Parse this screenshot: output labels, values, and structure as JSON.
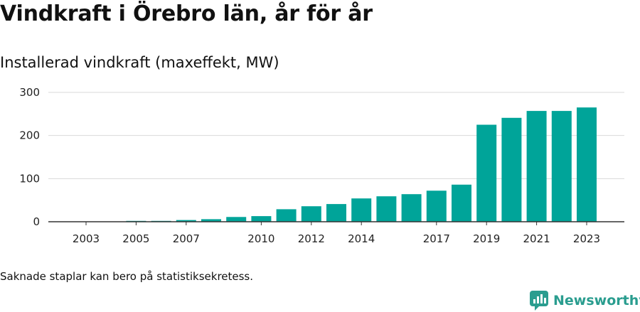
{
  "chart_data": {
    "type": "bar",
    "title": "Vindkraft i Örebro län, år för år",
    "subtitle": "Installerad vindkraft (maxeffekt, MW)",
    "categories": [
      "2003",
      "2004",
      "2005",
      "2006",
      "2007",
      "2008",
      "2009",
      "2010",
      "2011",
      "2012",
      "2013",
      "2014",
      "2015",
      "2016",
      "2017",
      "2018",
      "2019",
      "2020",
      "2021",
      "2022",
      "2023"
    ],
    "x_tick_labels": [
      "2003",
      "2005",
      "2007",
      "2010",
      "2012",
      "2014",
      "2017",
      "2019",
      "2021",
      "2023"
    ],
    "values": [
      0,
      0,
      2,
      2,
      4,
      6,
      11,
      13,
      29,
      36,
      41,
      54,
      59,
      64,
      72,
      86,
      225,
      241,
      257,
      257,
      265
    ],
    "yticks": [
      0,
      100,
      200,
      300
    ],
    "ylim": [
      0,
      300
    ],
    "xlabel": "",
    "ylabel": "",
    "grid": true,
    "bar_color": "#00a499"
  },
  "footnote": "Saknade staplar kan bero på statistiksekretess.",
  "brand": {
    "name": "Newsworthy",
    "color": "#2a9d8f"
  }
}
